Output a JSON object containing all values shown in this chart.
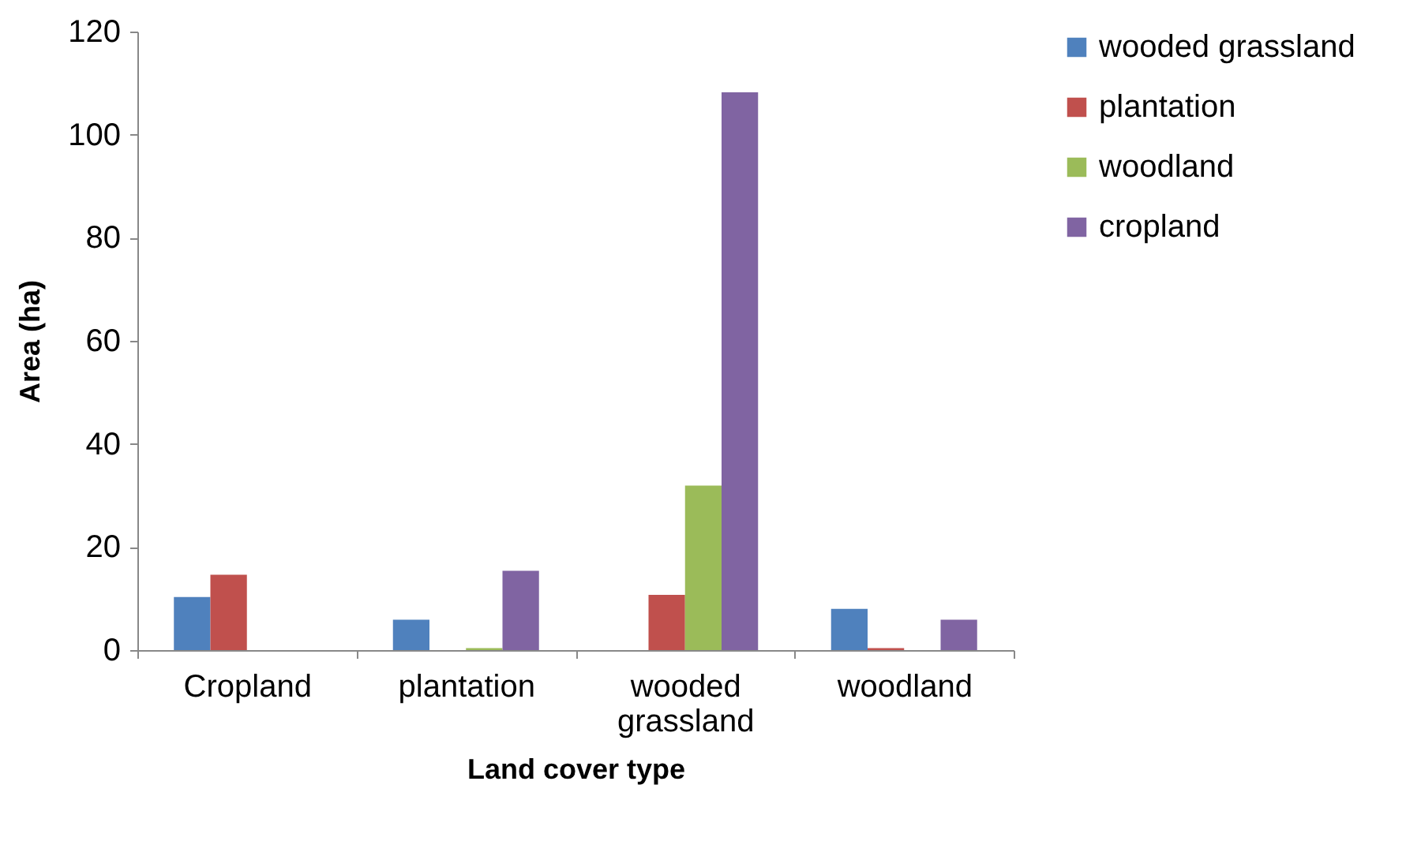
{
  "chart_data": {
    "type": "bar",
    "xlabel": "Land cover type",
    "ylabel": "Area (ha)",
    "categories": [
      "Cropland",
      "plantation",
      "wooded grassland",
      "woodland"
    ],
    "series": [
      {
        "name": "wooded grassland",
        "color": "#4f81bd",
        "values": [
          10.3,
          5.9,
          0,
          8.0
        ]
      },
      {
        "name": "plantation",
        "color": "#c0504d",
        "values": [
          14.6,
          0,
          10.7,
          0.4
        ]
      },
      {
        "name": "woodland",
        "color": "#9bbb59",
        "values": [
          0,
          0.4,
          31.9,
          0
        ]
      },
      {
        "name": "cropland",
        "color": "#8064a2",
        "values": [
          0,
          15.4,
          108.2,
          5.9
        ]
      }
    ],
    "ylim": [
      0,
      120
    ],
    "yticks": [
      0,
      20,
      40,
      60,
      80,
      100,
      120
    ],
    "grid": false,
    "legend": "right"
  }
}
